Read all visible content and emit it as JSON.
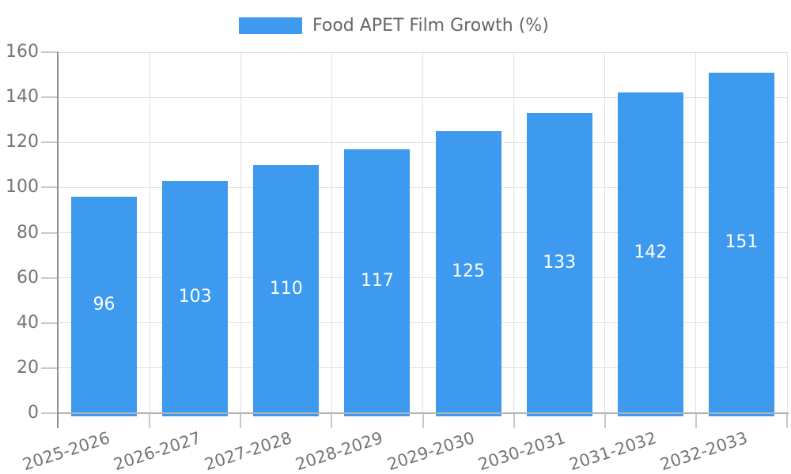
{
  "chart_data": {
    "type": "bar",
    "title": "Food APET Film Growth (%)",
    "categories": [
      "2025-2026",
      "2026-2027",
      "2027-2028",
      "2028-2029",
      "2029-2030",
      "2030-2031",
      "2031-2032",
      "2032-2033"
    ],
    "series": [
      {
        "name": "Food APET Film Growth (%)",
        "values": [
          96,
          103,
          110,
          117,
          125,
          133,
          142,
          151
        ]
      }
    ],
    "xlabel": "",
    "ylabel": "",
    "ylim": [
      0,
      160
    ],
    "yticks": [
      0,
      20,
      40,
      60,
      80,
      100,
      120,
      140,
      160
    ],
    "grid": true,
    "legend_position": "top-center",
    "x_tick_rotation_deg": -18,
    "value_labels_inside_bars": true
  },
  "legend": {
    "label": "Food APET Film Growth (%)"
  },
  "colors": {
    "bar": "#3D9AEE",
    "bar_value_label": "#FFFFFF",
    "legend_text": "#666666",
    "tick_label": "#757575",
    "gridline": "#E1E1E1",
    "y_axis_line": "#8F8F8F",
    "x_axis_line": "#B3B3B3",
    "tick_mark": "#C9C9C9",
    "background": "#FFFFFF"
  }
}
